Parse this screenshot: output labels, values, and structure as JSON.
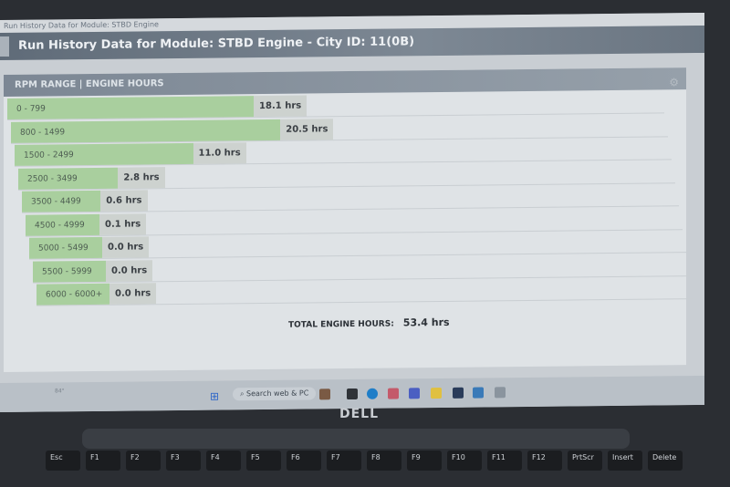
{
  "window_title": "Run History Data for Module: STBD Engine",
  "header": "Run History Data for Module: STBD Engine - City ID: 11(0B)",
  "panel_title": "RPM RANGE | ENGINE HOURS",
  "colors": {
    "bar_green": "#a9cf9e",
    "value_grey": "#cdd2cf",
    "header": "#6a7581"
  },
  "rows": [
    {
      "range": "0 - 799",
      "hours": 18.1,
      "label": "18.1 hrs"
    },
    {
      "range": "800 - 1499",
      "hours": 20.5,
      "label": "20.5 hrs"
    },
    {
      "range": "1500 - 2499",
      "hours": 11.0,
      "label": "11.0 hrs"
    },
    {
      "range": "2500 - 3499",
      "hours": 2.8,
      "label": "2.8 hrs"
    },
    {
      "range": "3500 - 4499",
      "hours": 0.6,
      "label": "0.6 hrs"
    },
    {
      "range": "4500 - 4999",
      "hours": 0.1,
      "label": "0.1 hrs"
    },
    {
      "range": "5000 - 5499",
      "hours": 0.0,
      "label": "0.0 hrs"
    },
    {
      "range": "5500 - 5999",
      "hours": 0.0,
      "label": "0.0 hrs"
    },
    {
      "range": "6000 - 6000+",
      "hours": 0.0,
      "label": "0.0 hrs"
    }
  ],
  "total": {
    "label": "TOTAL ENGINE HOURS:",
    "value": "53.4 hrs"
  },
  "taskbar": {
    "search": "Search web & PC",
    "weather": "84°"
  },
  "brand": "DELL",
  "keys": [
    "Esc",
    "F1",
    "F2",
    "F3",
    "F4",
    "F5",
    "F6",
    "F7",
    "F8",
    "F9",
    "F10",
    "F11",
    "F12",
    "PrtScr",
    "Insert",
    "Delete"
  ]
}
